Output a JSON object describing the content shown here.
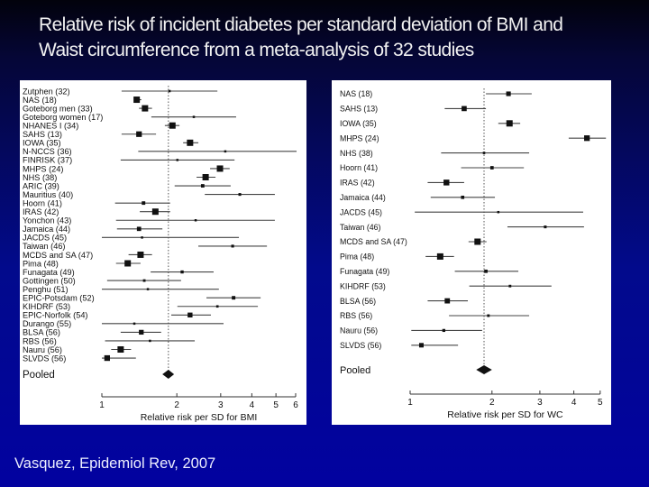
{
  "slide": {
    "title_lines": [
      "Relative risk of incident diabetes per standard deviation of BMI and",
      "Waist circumference from a meta-analysis of 32 studies"
    ],
    "citation": "Vasquez, Epidemiol Rev, 2007",
    "colors": {
      "background_top": "#02020c",
      "background_bottom": "#0202a0",
      "title_text": "#f2f2f2",
      "panel": "#ffffff",
      "marks": "#111111"
    }
  },
  "chart_data": [
    {
      "type": "forest",
      "title": "",
      "xlabel": "Relative risk per SD for BMI",
      "ylabel": "",
      "xscale": "log",
      "xlim": [
        1,
        6
      ],
      "xticks": [
        1,
        2,
        3,
        4,
        5,
        6
      ],
      "reference_line": 1.85,
      "grid": false,
      "studies": [
        {
          "label": "Zutphen (32)",
          "rr": 1.87,
          "lo": 1.2,
          "hi": 2.91
        },
        {
          "label": "NAS (18)",
          "rr": 1.38,
          "lo": 1.36,
          "hi": 1.44
        },
        {
          "label": "Goteborg men (33)",
          "rr": 1.49,
          "lo": 1.41,
          "hi": 1.59
        },
        {
          "label": "Goteborg women (17)",
          "rr": 2.34,
          "lo": 1.58,
          "hi": 3.46
        },
        {
          "label": "NHANES I (34)",
          "rr": 1.92,
          "lo": 1.79,
          "hi": 2.05
        },
        {
          "label": "SAHS (13)",
          "rr": 1.41,
          "lo": 1.2,
          "hi": 1.65
        },
        {
          "label": "IOWA (35)",
          "rr": 2.26,
          "lo": 2.12,
          "hi": 2.44
        },
        {
          "label": "N-NCCS (36)",
          "rr": 3.13,
          "lo": 1.4,
          "hi": 6.05
        },
        {
          "label": "FINRISK (37)",
          "rr": 2.01,
          "lo": 1.19,
          "hi": 3.41
        },
        {
          "label": "MHPS (24)",
          "rr": 2.98,
          "lo": 2.72,
          "hi": 3.26
        },
        {
          "label": "NHS (38)",
          "rr": 2.61,
          "lo": 2.4,
          "hi": 2.86
        },
        {
          "label": "ARIC (39)",
          "rr": 2.54,
          "lo": 1.96,
          "hi": 3.29
        },
        {
          "label": "Mauritius (40)",
          "rr": 3.58,
          "lo": 2.59,
          "hi": 4.95
        },
        {
          "label": "Hoorn (41)",
          "rr": 1.47,
          "lo": 1.13,
          "hi": 1.88
        },
        {
          "label": "IRAS (42)",
          "rr": 1.64,
          "lo": 1.42,
          "hi": 1.88
        },
        {
          "label": "Yonchon (43)",
          "rr": 2.38,
          "lo": 1.14,
          "hi": 4.95
        },
        {
          "label": "Jamaica (44)",
          "rr": 1.41,
          "lo": 1.15,
          "hi": 1.75
        },
        {
          "label": "JACDS (45)",
          "rr": 1.45,
          "lo": 1.0,
          "hi": 3.55
        },
        {
          "label": "Taiwan (46)",
          "rr": 3.35,
          "lo": 2.44,
          "hi": 4.6
        },
        {
          "label": "MCDS and SA (47)",
          "rr": 1.43,
          "lo": 1.28,
          "hi": 1.59
        },
        {
          "label": "Pima (48)",
          "rr": 1.27,
          "lo": 1.14,
          "hi": 1.43
        },
        {
          "label": "Funagata (49)",
          "rr": 2.1,
          "lo": 1.57,
          "hi": 2.81
        },
        {
          "label": "Gottingen (50)",
          "rr": 1.48,
          "lo": 1.05,
          "hi": 2.08
        },
        {
          "label": "Penghu (51)",
          "rr": 1.53,
          "lo": 1.0,
          "hi": 2.95
        },
        {
          "label": "EPIC-Potsdam (52)",
          "rr": 3.38,
          "lo": 2.63,
          "hi": 4.34
        },
        {
          "label": "KIHDRF (53)",
          "rr": 2.91,
          "lo": 2.01,
          "hi": 4.23
        },
        {
          "label": "EPIC-Norfolk (54)",
          "rr": 2.26,
          "lo": 1.9,
          "hi": 2.74
        },
        {
          "label": "Durango (55)",
          "rr": 1.35,
          "lo": 1.0,
          "hi": 3.08
        },
        {
          "label": "BLSA (56)",
          "rr": 1.44,
          "lo": 1.19,
          "hi": 1.73
        },
        {
          "label": "RBS (56)",
          "rr": 1.56,
          "lo": 1.03,
          "hi": 2.36
        },
        {
          "label": "Nauru (56)",
          "rr": 1.19,
          "lo": 1.09,
          "hi": 1.31
        },
        {
          "label": "SLVDS (56)",
          "rr": 1.05,
          "lo": 1.0,
          "hi": 1.37
        }
      ],
      "pooled": {
        "label": "Pooled",
        "rr": 1.85,
        "lo": 1.75,
        "hi": 1.95
      }
    },
    {
      "type": "forest",
      "title": "",
      "xlabel": "Relative risk per SD for WC",
      "ylabel": "",
      "xscale": "log",
      "xlim": [
        1,
        5
      ],
      "xticks": [
        1,
        2,
        3,
        4,
        5
      ],
      "reference_line": 1.87,
      "grid": false,
      "studies": [
        {
          "label": "NAS (18)",
          "rr": 2.3,
          "lo": 1.9,
          "hi": 2.8
        },
        {
          "label": "SAHS (13)",
          "rr": 1.58,
          "lo": 1.34,
          "hi": 1.9
        },
        {
          "label": "IOWA (35)",
          "rr": 2.32,
          "lo": 2.11,
          "hi": 2.54
        },
        {
          "label": "MHPS (24)",
          "rr": 4.47,
          "lo": 3.83,
          "hi": 5.25
        },
        {
          "label": "NHS (38)",
          "rr": 1.87,
          "lo": 1.3,
          "hi": 2.74
        },
        {
          "label": "Hoorn (41)",
          "rr": 2.0,
          "lo": 1.54,
          "hi": 2.62
        },
        {
          "label": "IRAS (42)",
          "rr": 1.36,
          "lo": 1.16,
          "hi": 1.58
        },
        {
          "label": "Jamaica (44)",
          "rr": 1.56,
          "lo": 1.19,
          "hi": 2.05
        },
        {
          "label": "JACDS (45)",
          "rr": 2.11,
          "lo": 1.04,
          "hi": 4.33
        },
        {
          "label": "Taiwan (46)",
          "rr": 3.14,
          "lo": 2.28,
          "hi": 4.36
        },
        {
          "label": "MCDS and SA (47)",
          "rr": 1.77,
          "lo": 1.64,
          "hi": 1.91
        },
        {
          "label": "Pima (48)",
          "rr": 1.29,
          "lo": 1.14,
          "hi": 1.45
        },
        {
          "label": "Funagata (49)",
          "rr": 1.9,
          "lo": 1.46,
          "hi": 2.5
        },
        {
          "label": "KIHDRF (53)",
          "rr": 2.33,
          "lo": 1.65,
          "hi": 3.31
        },
        {
          "label": "BLSA (56)",
          "rr": 1.37,
          "lo": 1.16,
          "hi": 1.63
        },
        {
          "label": "RBS (56)",
          "rr": 1.94,
          "lo": 1.39,
          "hi": 2.74
        },
        {
          "label": "Nauru (56)",
          "rr": 1.33,
          "lo": 1.01,
          "hi": 1.84
        },
        {
          "label": "SLVDS (56)",
          "rr": 1.1,
          "lo": 1.01,
          "hi": 1.5
        }
      ],
      "pooled": {
        "label": "Pooled",
        "rr": 1.87,
        "lo": 1.75,
        "hi": 2.0
      }
    }
  ]
}
